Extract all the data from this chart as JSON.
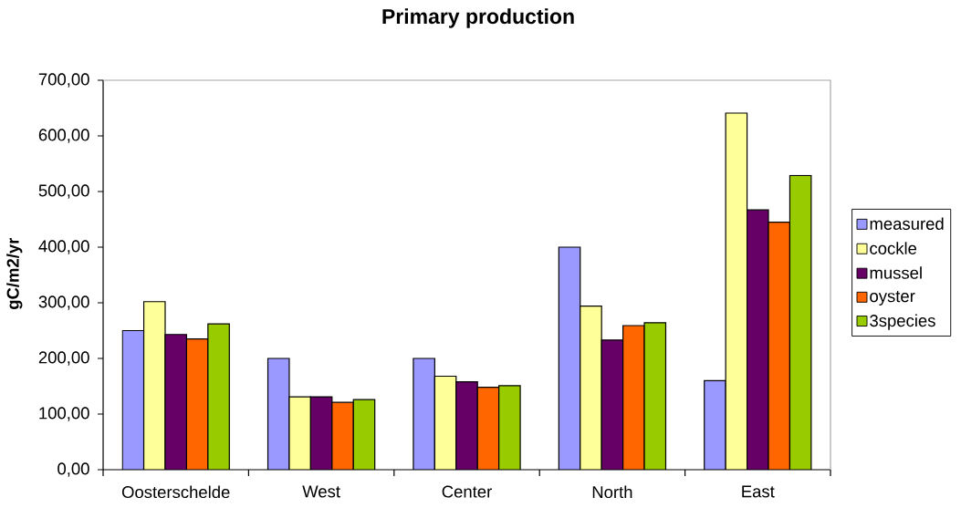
{
  "chart_data": {
    "type": "bar",
    "title": "Primary production",
    "ylabel": "gC/m2/yr",
    "categories": [
      "Oosterschelde",
      "West",
      "Center",
      "North",
      "East"
    ],
    "series": [
      {
        "name": "measured",
        "color": "#9999ff",
        "values": [
          250,
          200,
          200,
          400,
          160
        ]
      },
      {
        "name": "cockle",
        "color": "#ffff99",
        "values": [
          302,
          131,
          168,
          294,
          641
        ]
      },
      {
        "name": "mussel",
        "color": "#660066",
        "values": [
          243,
          131,
          158,
          233,
          467
        ]
      },
      {
        "name": "oyster",
        "color": "#ff6600",
        "values": [
          235,
          121,
          148,
          259,
          445
        ]
      },
      {
        "name": "3species",
        "color": "#99cc00",
        "values": [
          262,
          126,
          151,
          264,
          529
        ]
      }
    ],
    "ylim": [
      0,
      700
    ],
    "yticks": [
      {
        "value": 0,
        "label": "0,00"
      },
      {
        "value": 100,
        "label": "100,00"
      },
      {
        "value": 200,
        "label": "200,00"
      },
      {
        "value": 300,
        "label": "300,00"
      },
      {
        "value": 400,
        "label": "400,00"
      },
      {
        "value": 500,
        "label": "500,00"
      },
      {
        "value": 600,
        "label": "600,00"
      },
      {
        "value": 700,
        "label": "700,00"
      }
    ],
    "legend": "right"
  }
}
